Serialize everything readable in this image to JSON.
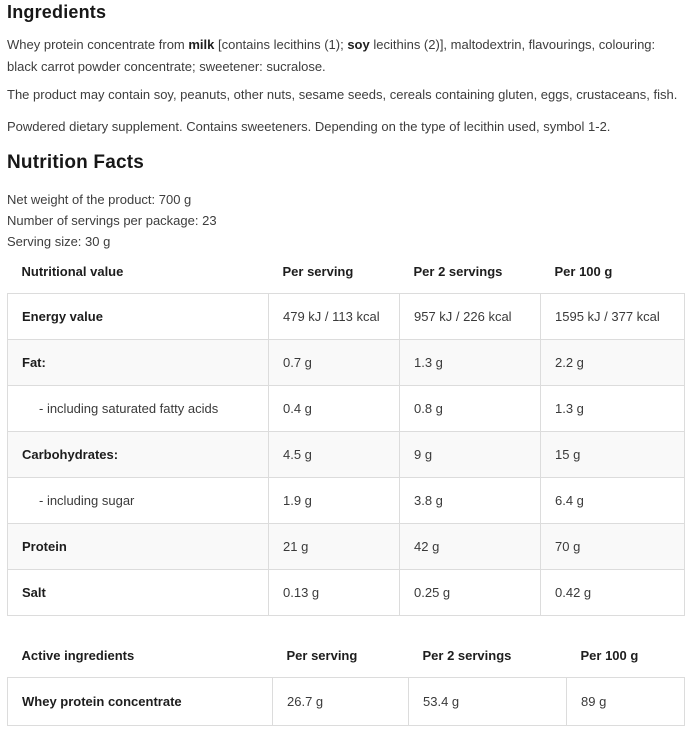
{
  "colors": {
    "table_border": "#dcdcdc",
    "alt_row_background": "#f9f9f9",
    "heading_text": "#171717",
    "body_text": "#3d3d3d"
  },
  "ingredients": {
    "heading": "Ingredients",
    "description_parts": [
      {
        "text": "Whey protein concentrate from ",
        "bold": false
      },
      {
        "text": "milk",
        "bold": true
      },
      {
        "text": " [contains lecithins (1); ",
        "bold": false
      },
      {
        "text": "soy",
        "bold": true
      },
      {
        "text": " lecithins (2)], maltodextrin, flavourings, colouring: black carrot powder concentrate; sweetener: sucralose.",
        "bold": false
      }
    ],
    "allergen_note": "The product may contain soy, peanuts, other nuts, sesame seeds, cereals containing gluten, eggs, crustaceans, fish.",
    "supplement_note": "Powdered dietary supplement. Contains sweeteners. Depending on the type of lecithin used, symbol 1-2."
  },
  "nutrition": {
    "heading": "Nutrition Facts",
    "net_weight": "Net weight of the product: 700 g",
    "servings_per_package": "Number of servings per package: 23",
    "serving_size": "Serving size: 30 g",
    "table": {
      "headers": [
        "Nutritional value",
        "Per serving",
        "Per 2 servings",
        "Per 100 g"
      ],
      "rows": [
        {
          "label": "Energy value",
          "bold": true,
          "indent": false,
          "values": [
            "479 kJ / 113 kcal",
            "957 kJ / 226 kcal",
            "1595 kJ / 377 kcal"
          ]
        },
        {
          "label": "Fat:",
          "bold": true,
          "indent": false,
          "values": [
            "0.7 g",
            "1.3 g",
            "2.2 g"
          ]
        },
        {
          "label": "- including saturated fatty acids",
          "bold": false,
          "indent": true,
          "values": [
            "0.4 g",
            "0.8 g",
            "1.3 g"
          ]
        },
        {
          "label": "Carbohydrates:",
          "bold": true,
          "indent": false,
          "values": [
            "4.5 g",
            "9 g",
            "15 g"
          ]
        },
        {
          "label": "- including sugar",
          "bold": false,
          "indent": true,
          "values": [
            "1.9 g",
            "3.8 g",
            "6.4 g"
          ]
        },
        {
          "label": "Protein",
          "bold": true,
          "indent": false,
          "values": [
            "21 g",
            "42 g",
            "70 g"
          ]
        },
        {
          "label": "Salt",
          "bold": true,
          "indent": false,
          "values": [
            "0.13 g",
            "0.25 g",
            "0.42 g"
          ]
        }
      ]
    }
  },
  "active_ingredients": {
    "table": {
      "headers": [
        "Active ingredients",
        "Per serving",
        "Per 2 servings",
        "Per 100 g"
      ],
      "rows": [
        {
          "label": "Whey protein concentrate",
          "bold": true,
          "indent": false,
          "values": [
            "26.7 g",
            "53.4 g",
            "89 g"
          ]
        }
      ]
    }
  }
}
